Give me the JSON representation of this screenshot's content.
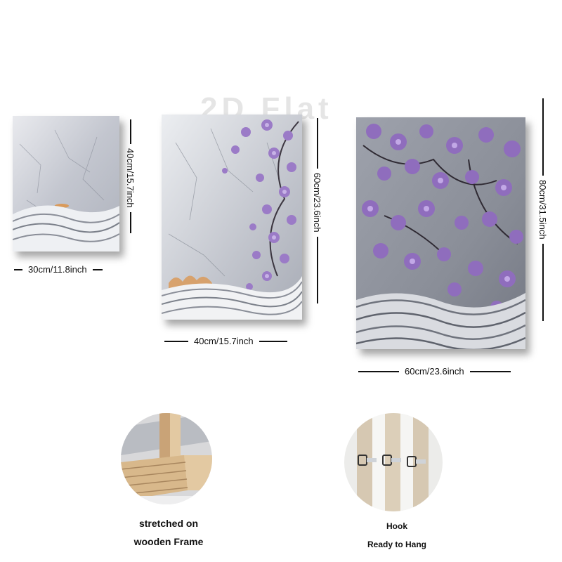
{
  "watermark": "2D Flat",
  "panels": {
    "small": {
      "width_label": "30cm/11.8inch",
      "height_label": "40cm/15.7inch"
    },
    "medium": {
      "width_label": "40cm/15.7inch",
      "height_label": "60cm/23.6inch"
    },
    "large": {
      "width_label": "60cm/23.6inch",
      "height_label": "80cm/31.5inch"
    }
  },
  "features": {
    "frame": {
      "line1": "stretched on",
      "line2": "wooden Frame"
    },
    "hook": {
      "line1": "Hook",
      "line2": "Ready to Hang"
    }
  },
  "colors": {
    "blossom": "#9b7bc7",
    "marble": "#c9cbd2",
    "gold": "#d99a5b"
  }
}
